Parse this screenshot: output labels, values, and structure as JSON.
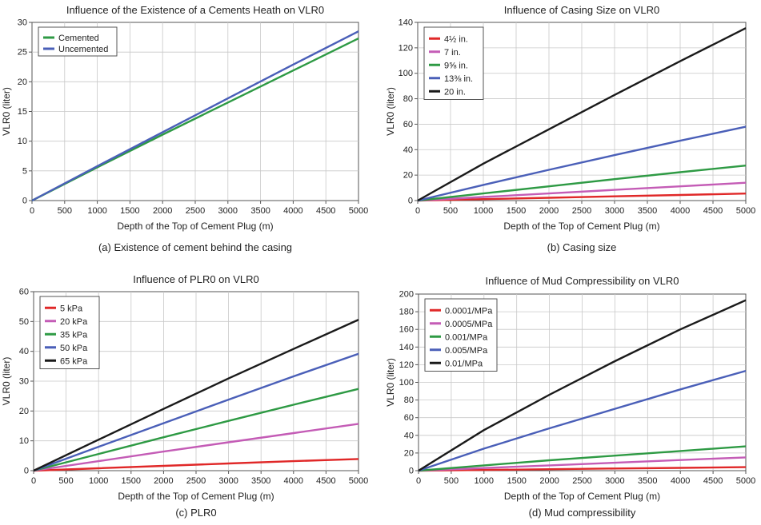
{
  "chart_data": [
    {
      "type": "line",
      "title": "Influence of the Existence of a Cements Heath on VLR0",
      "xlabel": "Depth of the Top of Cement Plug (m)",
      "ylabel": "VLR0 (liter)",
      "caption": "(a) Existence of cement behind the casing",
      "xlim": [
        0,
        5000
      ],
      "ylim": [
        0,
        30
      ],
      "xticks": [
        0,
        500,
        1000,
        1500,
        2000,
        2500,
        3000,
        3500,
        4000,
        4500,
        5000
      ],
      "yticks": [
        0,
        5,
        10,
        15,
        20,
        25,
        30
      ],
      "grid": true,
      "legend_position": "top-left",
      "series": [
        {
          "name": "Cemented",
          "color": "#2e9a44",
          "x": [
            0,
            1000,
            2000,
            3000,
            4000,
            5000
          ],
          "y": [
            0,
            5.6,
            11.1,
            16.5,
            21.9,
            27.3
          ]
        },
        {
          "name": "Uncemented",
          "color": "#4a5fb8",
          "x": [
            0,
            1000,
            2000,
            3000,
            4000,
            5000
          ],
          "y": [
            0,
            5.8,
            11.5,
            17.2,
            22.9,
            28.5
          ]
        }
      ]
    },
    {
      "type": "line",
      "title": "Influence of Casing Size on VLR0",
      "xlabel": "Depth of the Top of Cement Plug (m)",
      "ylabel": "VLR0 (liter)",
      "caption": "(b) Casing size",
      "xlim": [
        0,
        5000
      ],
      "ylim": [
        0,
        140
      ],
      "xticks": [
        0,
        500,
        1000,
        1500,
        2000,
        2500,
        3000,
        3500,
        4000,
        4500,
        5000
      ],
      "yticks": [
        0,
        20,
        40,
        60,
        80,
        100,
        120,
        140
      ],
      "grid": true,
      "legend_position": "top-left",
      "series": [
        {
          "name": "4½ in.",
          "color": "#e02828",
          "x": [
            0,
            1000,
            2000,
            3000,
            4000,
            5000
          ],
          "y": [
            0,
            1.1,
            2.2,
            3.3,
            4.4,
            5.5
          ]
        },
        {
          "name": "7 in.",
          "color": "#c45cb6",
          "x": [
            0,
            1000,
            2000,
            3000,
            4000,
            5000
          ],
          "y": [
            0,
            2.8,
            5.6,
            8.4,
            11.2,
            14
          ]
        },
        {
          "name": "9⅝ in.",
          "color": "#2e9a44",
          "x": [
            0,
            1000,
            2000,
            3000,
            4000,
            5000
          ],
          "y": [
            0,
            5.6,
            11.2,
            16.8,
            22.3,
            27.5
          ]
        },
        {
          "name": "13⅜ in.",
          "color": "#4a5fb8",
          "x": [
            0,
            1000,
            2000,
            3000,
            4000,
            5000
          ],
          "y": [
            0,
            12.3,
            24.2,
            35.7,
            47,
            58
          ]
        },
        {
          "name": "20 in.",
          "color": "#1a1a1a",
          "x": [
            0,
            1000,
            2000,
            3000,
            4000,
            5000
          ],
          "y": [
            0,
            29,
            56,
            83,
            109.5,
            135.5
          ]
        }
      ]
    },
    {
      "type": "line",
      "title": "Influence of PLR0 on VLR0",
      "xlabel": "Depth of the Top of Cement Plug (m)",
      "ylabel": "VLR0 (liter)",
      "caption": "(c) PLR0",
      "xlim": [
        0,
        5000
      ],
      "ylim": [
        0,
        60
      ],
      "xticks": [
        0,
        500,
        1000,
        1500,
        2000,
        2500,
        3000,
        3500,
        4000,
        4500,
        5000
      ],
      "yticks": [
        0,
        10,
        20,
        30,
        40,
        50,
        60
      ],
      "grid": true,
      "legend_position": "top-left",
      "series": [
        {
          "name": "5 kPa",
          "color": "#e02828",
          "x": [
            0,
            1000,
            2000,
            3000,
            4000,
            5000
          ],
          "y": [
            0,
            0.8,
            1.6,
            2.4,
            3.2,
            3.9
          ]
        },
        {
          "name": "20 kPa",
          "color": "#c45cb6",
          "x": [
            0,
            1000,
            2000,
            3000,
            4000,
            5000
          ],
          "y": [
            0,
            3.2,
            6.4,
            9.5,
            12.6,
            15.7
          ]
        },
        {
          "name": "35 kPa",
          "color": "#2e9a44",
          "x": [
            0,
            1000,
            2000,
            3000,
            4000,
            5000
          ],
          "y": [
            0,
            5.6,
            11.2,
            16.7,
            22.1,
            27.4
          ]
        },
        {
          "name": "50 kPa",
          "color": "#4a5fb8",
          "x": [
            0,
            1000,
            2000,
            3000,
            4000,
            5000
          ],
          "y": [
            0,
            8,
            15.9,
            23.8,
            31.6,
            39.2
          ]
        },
        {
          "name": "65 kPa",
          "color": "#1a1a1a",
          "x": [
            0,
            1000,
            2000,
            3000,
            4000,
            5000
          ],
          "y": [
            0,
            10.4,
            20.7,
            30.9,
            40.8,
            50.6
          ]
        }
      ]
    },
    {
      "type": "line",
      "title": "Influence of Mud Compressibility on VLR0",
      "xlabel": "Depth of the Top of Cement Plug (m)",
      "ylabel": "VLR0 (liter)",
      "caption": "(d) Mud compressibility",
      "xlim": [
        0,
        5000
      ],
      "ylim": [
        0,
        200
      ],
      "xticks": [
        0,
        500,
        1000,
        1500,
        2000,
        2500,
        3000,
        3500,
        4000,
        4500,
        5000
      ],
      "yticks": [
        0,
        20,
        40,
        60,
        80,
        100,
        120,
        140,
        160,
        180,
        200
      ],
      "grid": true,
      "legend_position": "top-left",
      "series": [
        {
          "name": "0.0001/MPa",
          "color": "#e02828",
          "x": [
            0,
            1000,
            2000,
            3000,
            4000,
            5000
          ],
          "y": [
            0,
            0.8,
            1.6,
            2.4,
            3.2,
            4
          ]
        },
        {
          "name": "0.0005/MPa",
          "color": "#c45cb6",
          "x": [
            0,
            1000,
            2000,
            3000,
            4000,
            5000
          ],
          "y": [
            0,
            3,
            6,
            9,
            12,
            15
          ]
        },
        {
          "name": "0.001/MPa",
          "color": "#2e9a44",
          "x": [
            0,
            1000,
            2000,
            3000,
            4000,
            5000
          ],
          "y": [
            0,
            6,
            11.8,
            17,
            22.3,
            27.5
          ]
        },
        {
          "name": "0.005/MPa",
          "color": "#4a5fb8",
          "x": [
            0,
            1000,
            2000,
            3000,
            4000,
            5000
          ],
          "y": [
            0,
            25,
            48,
            70,
            92,
            113
          ]
        },
        {
          "name": "0.01/MPa",
          "color": "#1a1a1a",
          "x": [
            0,
            1000,
            2000,
            3000,
            4000,
            5000
          ],
          "y": [
            0,
            46,
            86,
            124,
            160,
            193
          ]
        }
      ]
    }
  ]
}
